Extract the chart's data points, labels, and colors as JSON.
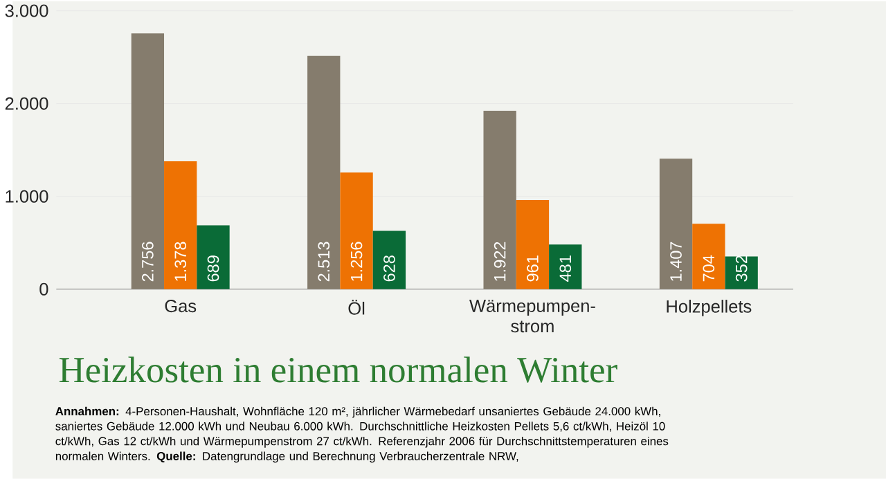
{
  "chart_data": {
    "type": "bar",
    "title": "Heizkosten in einem normalen Winter",
    "categories": [
      "Gas",
      "Öl",
      "Wärmepumpen-strom",
      "Holzpellets"
    ],
    "series": [
      {
        "color": "#857c6d",
        "values": [
          2756,
          2513,
          1922,
          1407
        ],
        "value_labels": [
          "2.756",
          "2.513",
          "1.922",
          "1.407"
        ]
      },
      {
        "color": "#ee7203",
        "values": [
          1378,
          1256,
          961,
          704
        ],
        "value_labels": [
          "1.378",
          "1.256",
          "961",
          "704"
        ]
      },
      {
        "color": "#0a6b37",
        "values": [
          689,
          628,
          481,
          352
        ],
        "value_labels": [
          "689",
          "628",
          "481",
          "352"
        ]
      }
    ],
    "ylim": [
      0,
      3000
    ],
    "yticks": [
      {
        "value": 0,
        "label": "0"
      },
      {
        "value": 1000,
        "label": "1.000"
      },
      {
        "value": 2000,
        "label": "2.000"
      },
      {
        "value": 3000,
        "label": "3.000"
      }
    ],
    "grid": "y",
    "annotations": [
      "**Annahmen:** 4-Personen-Haushalt, Wohnfläche 120 m², jährlicher Wärmebedarf unsaniertes Gebäude 24.000 kWh, saniertes Gebäude 12.000 kWh und Neubau 6.000 kWh. Durchschnittliche Heizkosten Pellets 5,6 ct/kWh, Heizöl 10 ct/kWh, Gas 12 ct/kWh und Wärmepumpenstrom 27 ct/kWh. Referenzjahr 2006 für Durchschnittstemperaturen eines normalen Winters. **Quelle:** Datengrundlage und Berechnung Verbraucherzentrale NRW,"
    ]
  }
}
